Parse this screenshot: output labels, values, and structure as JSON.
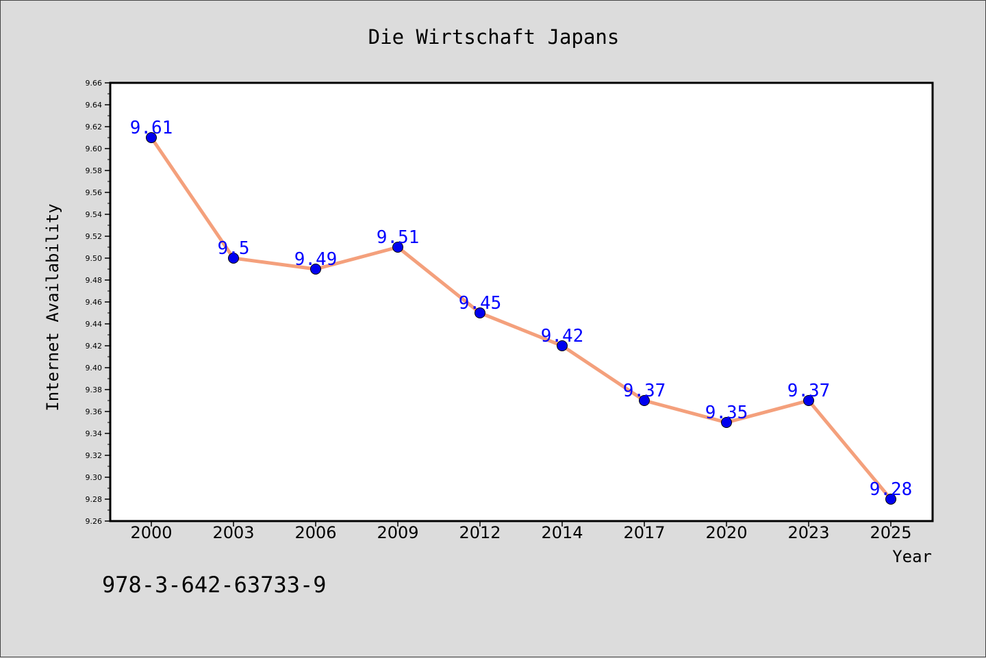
{
  "chart_data": {
    "type": "line",
    "title": "Die Wirtschaft Japans",
    "xlabel": "Year",
    "ylabel": "Internet Availability",
    "categories": [
      "2000",
      "2003",
      "2006",
      "2009",
      "2012",
      "2014",
      "2017",
      "2020",
      "2023",
      "2025"
    ],
    "series": [
      {
        "values": [
          9.61,
          9.5,
          9.49,
          9.51,
          9.45,
          9.42,
          9.37,
          9.35,
          9.37,
          9.28
        ],
        "labels": [
          "9.61",
          "9.5",
          "9.49",
          "9.51",
          "9.45",
          "9.42",
          "9.37",
          "9.35",
          "9.37",
          "9.28"
        ],
        "line_color": "#f4a07c",
        "marker_color": "#0000ee",
        "label_color": "#0000ff"
      }
    ],
    "ylim": [
      9.26,
      9.66
    ],
    "yticks": [
      "9.26",
      "9.28",
      "9.30",
      "9.32",
      "9.34",
      "9.36",
      "9.38",
      "9.40",
      "9.42",
      "9.44",
      "9.46",
      "9.48",
      "9.50",
      "9.52",
      "9.54",
      "9.56",
      "9.58",
      "9.60",
      "9.62",
      "9.64",
      "9.66"
    ],
    "grid": false,
    "legend": "none",
    "annotation": "978-3-642-63733-9"
  },
  "colors": {
    "background": "#dcdcdc",
    "plot_background": "#ffffff",
    "axis": "#000000"
  }
}
